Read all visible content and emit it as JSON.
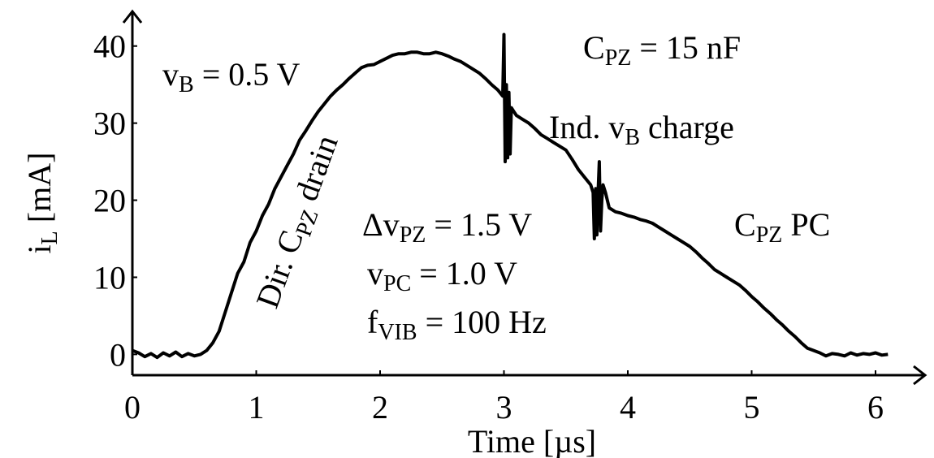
{
  "chart_data": {
    "type": "line",
    "x_label": "Time [µs]",
    "y_label": [
      "i",
      "L",
      " [mA]"
    ],
    "xlim": [
      0,
      6.4
    ],
    "ylim": [
      -2.7,
      44.5
    ],
    "xticks": [
      0,
      1,
      2,
      3,
      4,
      5,
      6
    ],
    "yticks": [
      0,
      10,
      20,
      30,
      40
    ],
    "color": "#000000",
    "x": [
      0,
      0.05,
      0.1,
      0.15,
      0.2,
      0.25,
      0.3,
      0.35,
      0.4,
      0.45,
      0.5,
      0.55,
      0.6,
      0.65,
      0.7,
      0.75,
      0.8,
      0.85,
      0.9,
      0.95,
      1.0,
      1.05,
      1.1,
      1.15,
      1.2,
      1.25,
      1.3,
      1.35,
      1.4,
      1.45,
      1.5,
      1.55,
      1.6,
      1.65,
      1.7,
      1.75,
      1.8,
      1.85,
      1.9,
      1.95,
      2.0,
      2.05,
      2.1,
      2.15,
      2.2,
      2.25,
      2.3,
      2.35,
      2.4,
      2.45,
      2.5,
      2.55,
      2.6,
      2.65,
      2.7,
      2.75,
      2.8,
      2.85,
      2.9,
      2.95,
      2.99,
      3.0,
      3.01,
      3.02,
      3.03,
      3.04,
      3.05,
      3.06,
      3.08,
      3.1,
      3.15,
      3.2,
      3.25,
      3.3,
      3.35,
      3.4,
      3.45,
      3.5,
      3.55,
      3.6,
      3.65,
      3.7,
      3.72,
      3.73,
      3.74,
      3.75,
      3.76,
      3.77,
      3.78,
      3.79,
      3.8,
      3.82,
      3.85,
      3.9,
      3.95,
      4.0,
      4.05,
      4.1,
      4.15,
      4.2,
      4.25,
      4.3,
      4.35,
      4.4,
      4.45,
      4.5,
      4.55,
      4.6,
      4.65,
      4.7,
      4.75,
      4.8,
      4.85,
      4.9,
      4.95,
      5.0,
      5.05,
      5.1,
      5.15,
      5.2,
      5.25,
      5.3,
      5.35,
      5.4,
      5.45,
      5.5,
      5.55,
      5.6,
      5.65,
      5.7,
      5.75,
      5.8,
      5.85,
      5.9,
      5.95,
      6.0,
      6.05,
      6.1
    ],
    "series": [
      {
        "values": [
          0.5,
          0.2,
          -0.3,
          0.1,
          -0.4,
          0.2,
          -0.2,
          0.3,
          -0.3,
          0.1,
          -0.2,
          0.0,
          0.5,
          1.5,
          3.0,
          5.5,
          8.0,
          10.5,
          12.0,
          14.5,
          16.0,
          18.0,
          19.5,
          21.5,
          23.0,
          24.5,
          26.0,
          27.8,
          29.0,
          30.3,
          31.5,
          32.5,
          33.5,
          34.3,
          35.0,
          35.8,
          36.5,
          37.2,
          37.5,
          37.6,
          38.0,
          38.4,
          38.8,
          39.0,
          39.0,
          39.2,
          39.2,
          39.0,
          39.0,
          39.2,
          39.0,
          38.7,
          38.3,
          38.0,
          37.5,
          37.0,
          36.5,
          35.8,
          35.0,
          34.3,
          33.5,
          41.5,
          25.0,
          35.0,
          25.5,
          34.0,
          26.0,
          32.0,
          31.5,
          31.0,
          30.5,
          30.0,
          29.3,
          28.5,
          28.0,
          27.5,
          27.0,
          26.5,
          25.3,
          24.0,
          23.0,
          22.0,
          21.0,
          15.0,
          21.5,
          15.5,
          21.0,
          25.0,
          16.0,
          20.0,
          22.0,
          21.0,
          19.0,
          18.5,
          18.3,
          18.0,
          17.8,
          17.5,
          17.3,
          17.0,
          16.5,
          16.0,
          15.5,
          15.0,
          14.5,
          14.0,
          13.3,
          12.5,
          11.8,
          11.0,
          10.5,
          10.0,
          9.5,
          9.0,
          8.3,
          7.5,
          6.8,
          6.0,
          5.3,
          4.5,
          3.8,
          3.0,
          2.3,
          1.5,
          0.8,
          0.5,
          0.2,
          -0.2,
          0.1,
          0.0,
          -0.2,
          0.2,
          -0.1,
          0.1,
          0.0,
          0.2,
          -0.1,
          0.0
        ]
      }
    ],
    "annotations": [
      [
        "v",
        "B",
        " = 0.5 V"
      ],
      [
        "C",
        "PZ",
        " = 15 nF"
      ],
      [
        "Ind. v",
        "B",
        " charge"
      ],
      [
        "Δv",
        "PZ",
        " = 1.5 V"
      ],
      [
        "v",
        "PC",
        " = 1.0 V"
      ],
      [
        "f",
        "VIB",
        " = 100 Hz"
      ],
      [
        "C",
        "PZ",
        " PC"
      ],
      [
        "Dir. C",
        "PZ",
        " drain"
      ]
    ]
  }
}
